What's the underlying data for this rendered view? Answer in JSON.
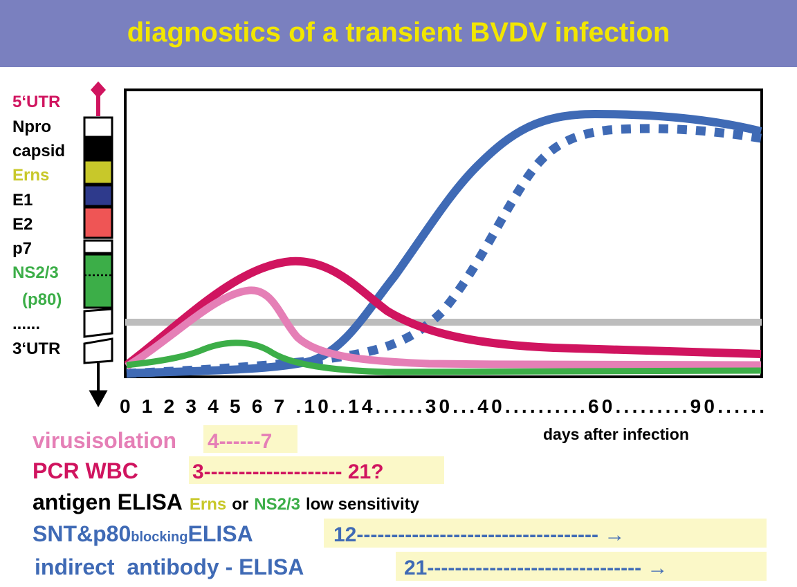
{
  "title": "diagnostics of a transient BVDV infection",
  "genome": [
    "5‘UTR",
    "Npro",
    "capsid",
    "Erns",
    "E1",
    "E2",
    "p7",
    "NS2/3",
    "(p80)",
    "......",
    "3‘UTR"
  ],
  "chart": {
    "x_axis": "0 1 2 3 4 5 6 7 .10..14......30...40..........60.........90......",
    "x_caption": "days after infection"
  },
  "methods": [
    {
      "name": "virusisolation",
      "period": "4------7"
    },
    {
      "name": "PCR WBC",
      "period": "3-------------------- 21?"
    },
    {
      "name": "antigen ELISA",
      "antigen_1": "Erns",
      "or": "or",
      "antigen_2": "NS2/3",
      "note": "low sensitivity"
    },
    {
      "name": "SNT&p80",
      "sub": "blocking",
      "name_end": "ELISA",
      "period": "12----------------------------------- →"
    },
    {
      "name": "indirect  antibody - ELISA",
      "period": "21------------------------------- →"
    }
  ]
}
